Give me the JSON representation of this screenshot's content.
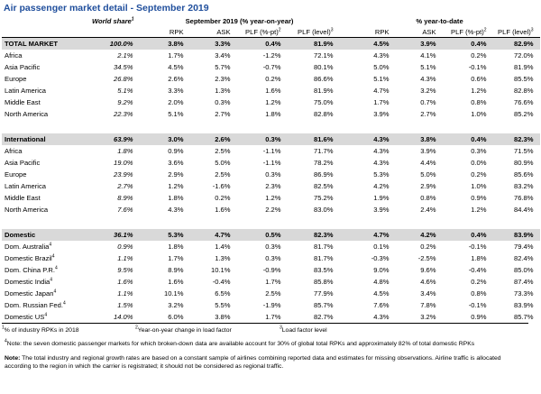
{
  "title": "Air passenger market detail - September 2019",
  "table": {
    "header": {
      "share": {
        "text": "World share",
        "sup": "1"
      },
      "groups": [
        "September 2019 (% year-on-year)",
        "% year-to-date"
      ],
      "columns": [
        {
          "text": "RPK"
        },
        {
          "text": "ASK"
        },
        {
          "text": "PLF (%-pt)",
          "sup": "2"
        },
        {
          "text": "PLF (level)",
          "sup": "3"
        },
        {
          "text": "RPK"
        },
        {
          "text": "ASK"
        },
        {
          "text": "PLF (%-pt)",
          "sup": "2"
        },
        {
          "text": "PLF (level)",
          "sup": "3"
        }
      ]
    },
    "sections": [
      {
        "rows": [
          {
            "label": "TOTAL MARKET",
            "cells": [
              "100.0%",
              "3.8%",
              "3.3%",
              "0.4%",
              "81.9%",
              "4.5%",
              "3.9%",
              "0.4%",
              "82.9%"
            ]
          },
          {
            "label": "Africa",
            "cells": [
              "2.1%",
              "1.7%",
              "3.4%",
              "-1.2%",
              "72.1%",
              "4.3%",
              "4.1%",
              "0.2%",
              "72.0%"
            ]
          },
          {
            "label": "Asia Pacific",
            "cells": [
              "34.5%",
              "4.5%",
              "5.7%",
              "-0.7%",
              "80.1%",
              "5.0%",
              "5.1%",
              "-0.1%",
              "81.9%"
            ]
          },
          {
            "label": "Europe",
            "cells": [
              "26.8%",
              "2.6%",
              "2.3%",
              "0.2%",
              "86.6%",
              "5.1%",
              "4.3%",
              "0.6%",
              "85.5%"
            ]
          },
          {
            "label": "Latin America",
            "cells": [
              "5.1%",
              "3.3%",
              "1.3%",
              "1.6%",
              "81.9%",
              "4.7%",
              "3.2%",
              "1.2%",
              "82.8%"
            ]
          },
          {
            "label": "Middle East",
            "cells": [
              "9.2%",
              "2.0%",
              "0.3%",
              "1.2%",
              "75.0%",
              "1.7%",
              "0.7%",
              "0.8%",
              "76.6%"
            ]
          },
          {
            "label": "North America",
            "cells": [
              "22.3%",
              "5.1%",
              "2.7%",
              "1.8%",
              "82.8%",
              "3.9%",
              "2.7%",
              "1.0%",
              "85.2%"
            ]
          }
        ]
      },
      {
        "rows": [
          {
            "label": "International",
            "cells": [
              "63.9%",
              "3.0%",
              "2.6%",
              "0.3%",
              "81.6%",
              "4.3%",
              "3.8%",
              "0.4%",
              "82.3%"
            ]
          },
          {
            "label": "Africa",
            "cells": [
              "1.8%",
              "0.9%",
              "2.5%",
              "-1.1%",
              "71.7%",
              "4.3%",
              "3.9%",
              "0.3%",
              "71.5%"
            ]
          },
          {
            "label": "Asia Pacific",
            "cells": [
              "19.0%",
              "3.6%",
              "5.0%",
              "-1.1%",
              "78.2%",
              "4.3%",
              "4.4%",
              "0.0%",
              "80.9%"
            ]
          },
          {
            "label": "Europe",
            "cells": [
              "23.9%",
              "2.9%",
              "2.5%",
              "0.3%",
              "86.9%",
              "5.3%",
              "5.0%",
              "0.2%",
              "85.6%"
            ]
          },
          {
            "label": "Latin America",
            "cells": [
              "2.7%",
              "1.2%",
              "-1.6%",
              "2.3%",
              "82.5%",
              "4.2%",
              "2.9%",
              "1.0%",
              "83.2%"
            ]
          },
          {
            "label": "Middle East",
            "cells": [
              "8.9%",
              "1.8%",
              "0.2%",
              "1.2%",
              "75.2%",
              "1.9%",
              "0.8%",
              "0.9%",
              "76.8%"
            ]
          },
          {
            "label": "North America",
            "cells": [
              "7.6%",
              "4.3%",
              "1.6%",
              "2.2%",
              "83.0%",
              "3.9%",
              "2.4%",
              "1.2%",
              "84.4%"
            ]
          }
        ]
      },
      {
        "rows": [
          {
            "label": "Domestic",
            "cells": [
              "36.1%",
              "5.3%",
              "4.7%",
              "0.5%",
              "82.3%",
              "4.7%",
              "4.2%",
              "0.4%",
              "83.9%"
            ]
          },
          {
            "label": "Dom. Australia",
            "sup": "4",
            "cells": [
              "0.9%",
              "1.8%",
              "1.4%",
              "0.3%",
              "81.7%",
              "0.1%",
              "0.2%",
              "-0.1%",
              "79.4%"
            ]
          },
          {
            "label": "Domestic Brazil",
            "sup": "4",
            "cells": [
              "1.1%",
              "1.7%",
              "1.3%",
              "0.3%",
              "81.7%",
              "-0.3%",
              "-2.5%",
              "1.8%",
              "82.4%"
            ]
          },
          {
            "label": "Dom. China P.R.",
            "sup": "4",
            "cells": [
              "9.5%",
              "8.9%",
              "10.1%",
              "-0.9%",
              "83.5%",
              "9.0%",
              "9.6%",
              "-0.4%",
              "85.0%"
            ]
          },
          {
            "label": "Domestic India",
            "sup": "4",
            "cells": [
              "1.6%",
              "1.6%",
              "-0.4%",
              "1.7%",
              "85.8%",
              "4.8%",
              "4.6%",
              "0.2%",
              "87.4%"
            ]
          },
          {
            "label": "Domestic Japan",
            "sup": "4",
            "cells": [
              "1.1%",
              "10.1%",
              "6.5%",
              "2.5%",
              "77.9%",
              "4.5%",
              "3.4%",
              "0.8%",
              "73.3%"
            ]
          },
          {
            "label": "Dom. Russian Fed.",
            "sup": "4",
            "cells": [
              "1.5%",
              "3.2%",
              "5.5%",
              "-1.9%",
              "85.7%",
              "7.6%",
              "7.8%",
              "-0.1%",
              "83.9%"
            ]
          },
          {
            "label": "Domestic US",
            "sup": "4",
            "cells": [
              "14.0%",
              "6.0%",
              "3.8%",
              "1.7%",
              "82.7%",
              "4.3%",
              "3.2%",
              "0.9%",
              "85.7%"
            ]
          }
        ]
      }
    ]
  },
  "footnotes": [
    {
      "sup": "1",
      "text": "% of industry RPKs in 2018"
    },
    {
      "sup": "2",
      "text": "Year-on-year change in load factor"
    },
    {
      "sup": "3",
      "text": "Load factor level"
    },
    {
      "sup": "4",
      "text": "Note: the seven domestic passenger markets for which broken-down data are available account for 30% of global total RPKs and approximately 82% of total domestic RPKs"
    }
  ],
  "note": {
    "label": "Note:",
    "text": "The total industry and regional growth rates are based on a constant sample of airlines combining reported data and estimates for missing observations. Airline traffic is allocated according to the region in which the carrier is registrated; it should not be considered as regional traffic."
  }
}
